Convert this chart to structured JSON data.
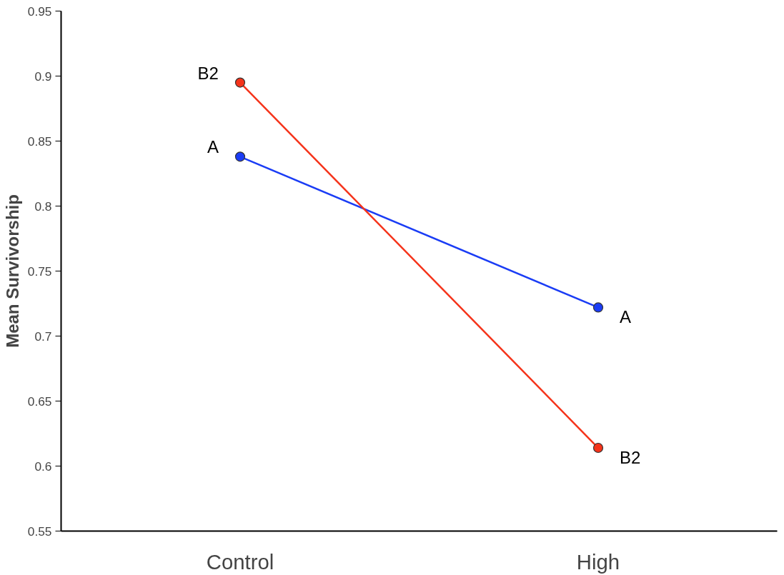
{
  "chart_data": {
    "type": "line",
    "ylabel": "Mean Survivorship",
    "categories": [
      "Control",
      "High"
    ],
    "series": [
      {
        "name": "A",
        "color": "#1a3cf5",
        "values": [
          0.838,
          0.722
        ]
      },
      {
        "name": "B2",
        "color": "#f5331a",
        "values": [
          0.895,
          0.614
        ]
      }
    ],
    "ylim": [
      0.55,
      0.95
    ],
    "yticks": [
      0.55,
      0.6,
      0.65,
      0.7,
      0.75,
      0.8,
      0.85,
      0.9,
      0.95
    ],
    "marker": "circle",
    "line_style": "solid",
    "grid": false
  }
}
